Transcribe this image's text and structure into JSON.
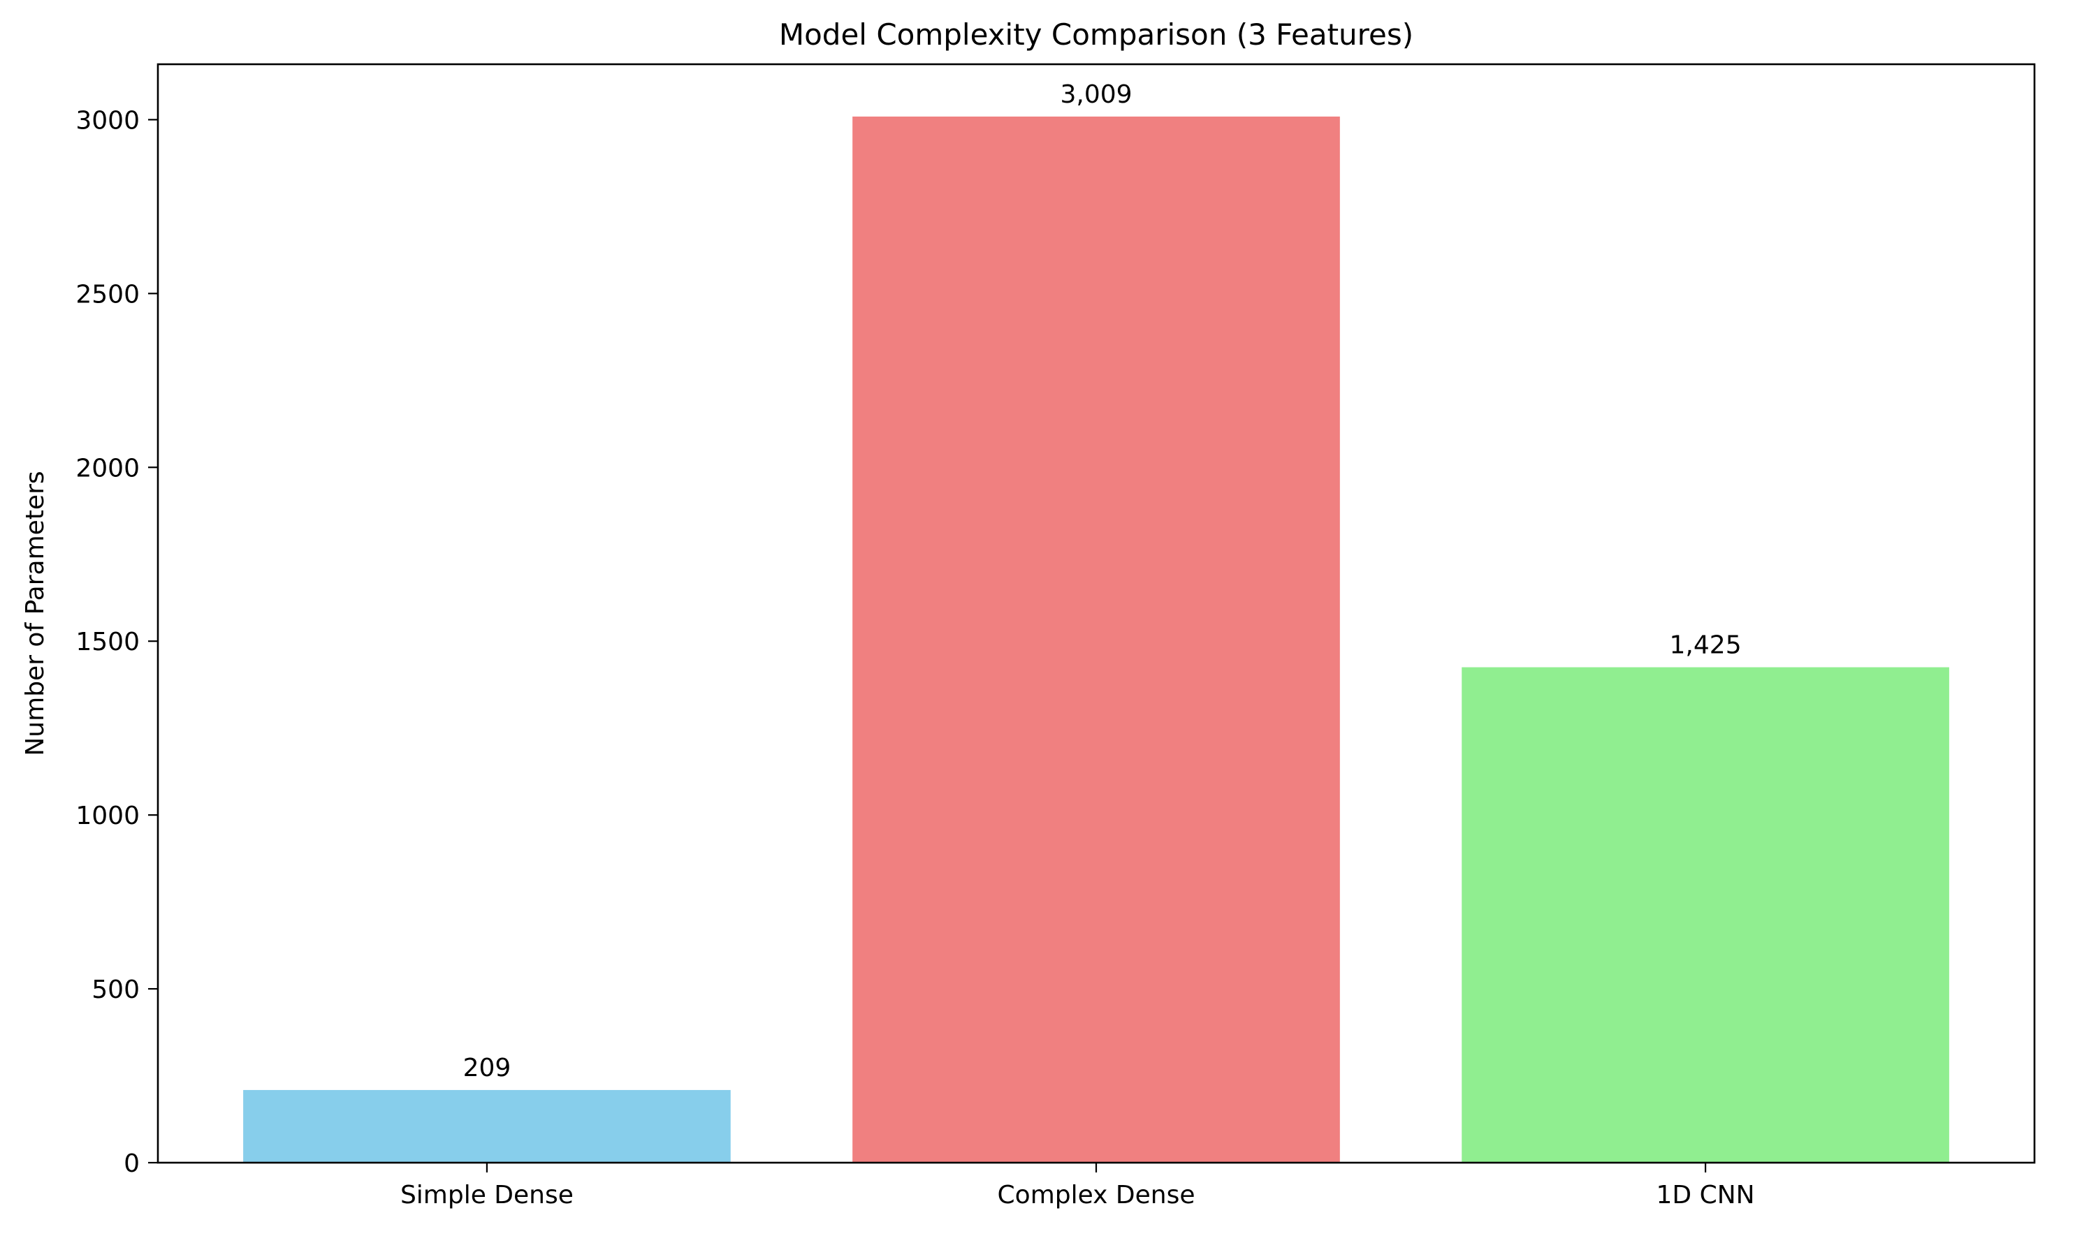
{
  "chart_data": {
    "type": "bar",
    "title": "Model Complexity Comparison (3 Features)",
    "xlabel": "",
    "ylabel": "Number of Parameters",
    "categories": [
      "Simple Dense",
      "Complex Dense",
      "1D CNN"
    ],
    "values": [
      209,
      3009,
      1425
    ],
    "value_labels": [
      "209",
      "3,009",
      "1,425"
    ],
    "colors": [
      "#87ceeb",
      "#f08080",
      "#90ee90"
    ],
    "ylim": [
      0,
      3159.45
    ],
    "yticks": [
      0,
      500,
      1000,
      1500,
      2000,
      2500,
      3000
    ],
    "grid": false,
    "legend": "none"
  }
}
